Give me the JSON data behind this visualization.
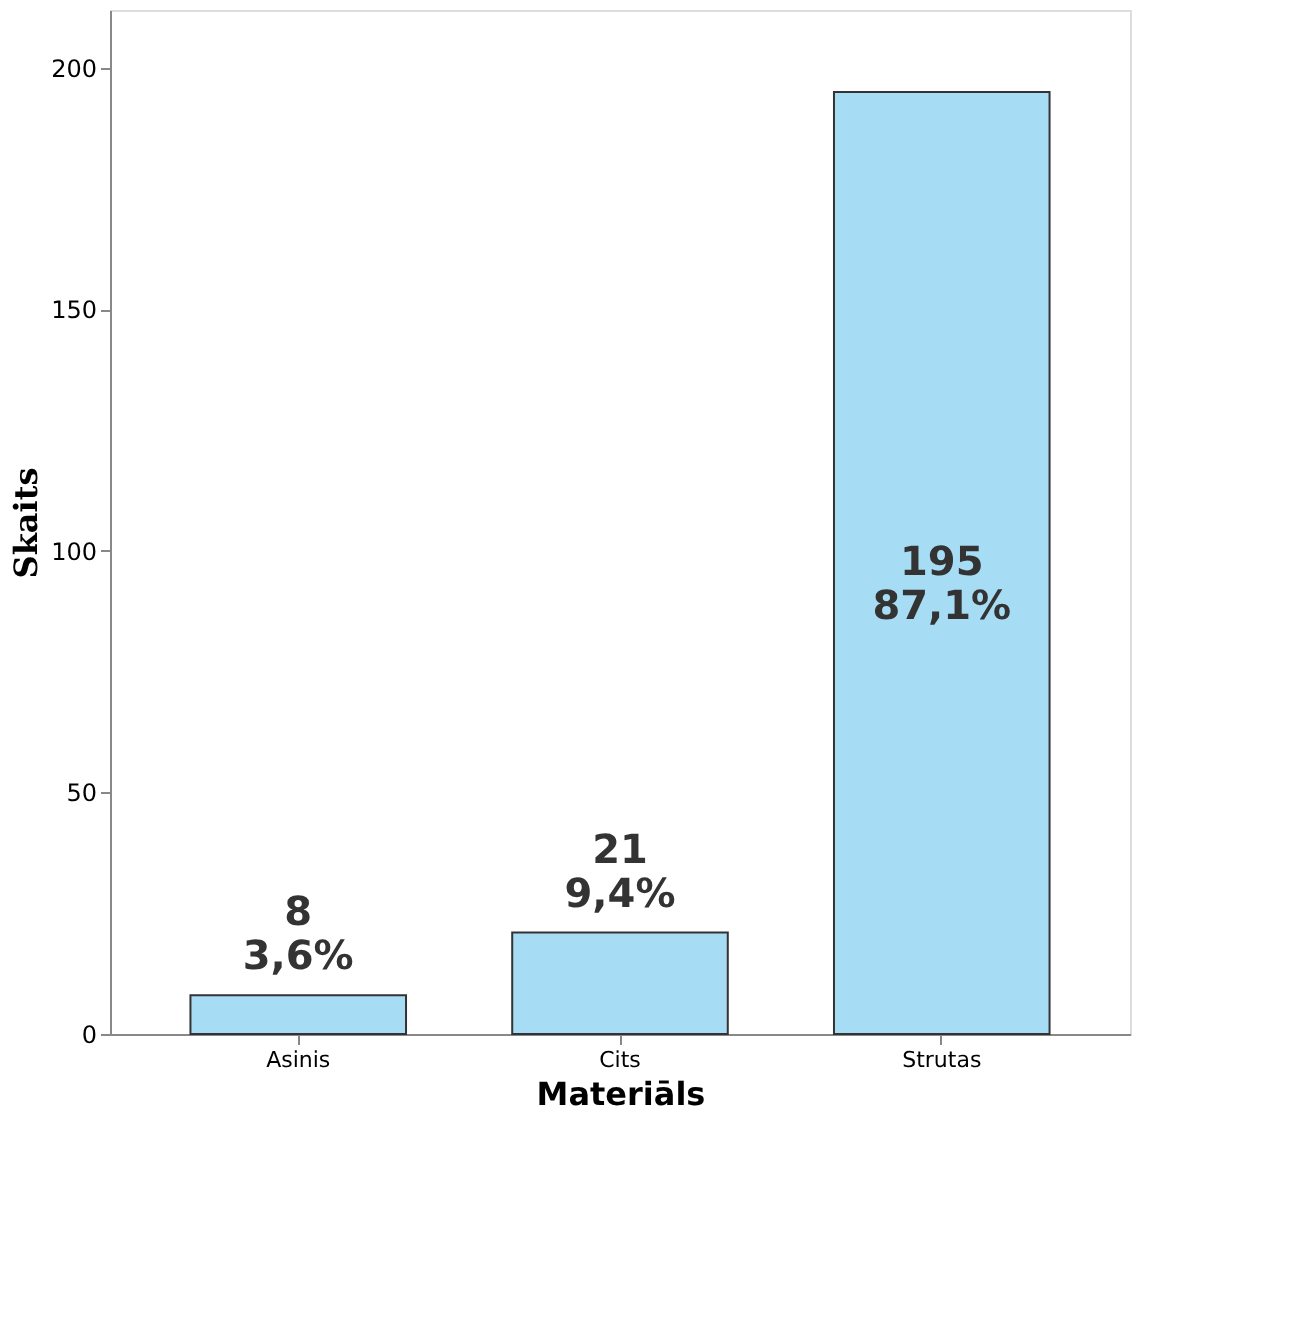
{
  "chart_data": {
    "type": "bar",
    "xlabel": "Materiāls",
    "ylabel": "Skaits",
    "categories": [
      "Asinis",
      "Cits",
      "Strutas"
    ],
    "values": [
      8,
      21,
      195
    ],
    "value_labels": [
      "8\n3,6%",
      "21\n9,4%",
      "195\n87,1%"
    ],
    "color": "#a6dcf4",
    "ylim": [
      0,
      212
    ],
    "yticks": [
      0,
      50,
      100,
      150,
      200
    ],
    "grid": false
  }
}
